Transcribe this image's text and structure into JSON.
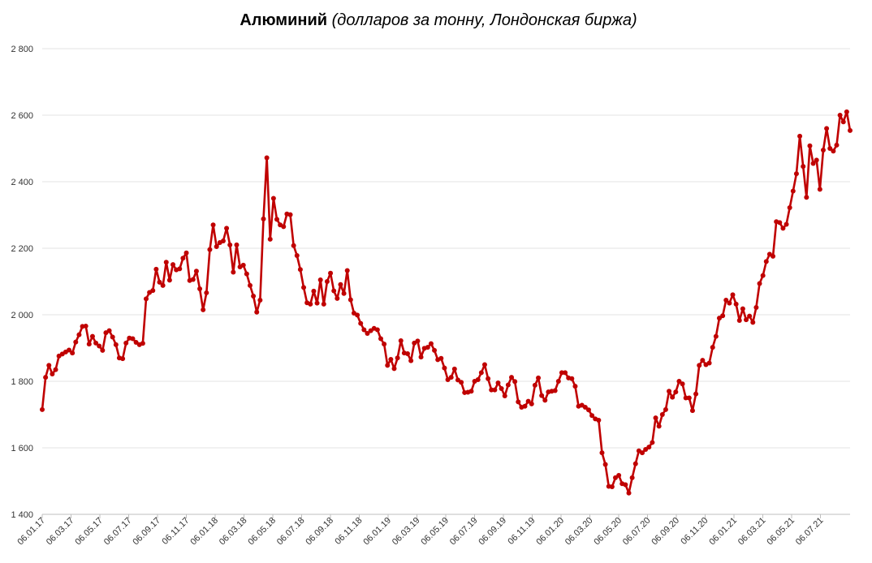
{
  "chart_data": {
    "type": "line",
    "title": "Алюминий",
    "subtitle": "(долларов за тонну, Лондонская биржа)",
    "xlabel": "",
    "ylabel": "",
    "ylim": [
      1400,
      2800
    ],
    "yticks": [
      1400,
      1600,
      1800,
      2000,
      2200,
      2400,
      2600,
      2800
    ],
    "ytick_labels": [
      "1 400",
      "1 600",
      "1 800",
      "2 000",
      "2 200",
      "2 400",
      "2 600",
      "2 800"
    ],
    "xtick_labels": [
      "06.01.17",
      "06.03.17",
      "06.05.17",
      "06.07.17",
      "06.09.17",
      "06.11.17",
      "06.01.18",
      "06.03.18",
      "06.05.18",
      "06.07.18",
      "06.09.18",
      "06.11.18",
      "06.01.19",
      "06.03.19",
      "06.05.19",
      "06.07.19",
      "06.09.19",
      "06.11.19",
      "06.01.20",
      "06.03.20",
      "06.05.20",
      "06.07.20",
      "06.09.20",
      "06.11.20",
      "06.01.21",
      "06.03.21",
      "06.05.21",
      "06.07.21"
    ],
    "grid": true,
    "legend": "none",
    "series": [
      {
        "color": "#C00000",
        "values": [
          1715,
          1812,
          1848,
          1822,
          1835,
          1876,
          1882,
          1888,
          1894,
          1885,
          1918,
          1940,
          1965,
          1966,
          1912,
          1935,
          1915,
          1906,
          1893,
          1946,
          1952,
          1933,
          1910,
          1870,
          1868,
          1915,
          1930,
          1928,
          1917,
          1910,
          1914,
          2048,
          2067,
          2073,
          2137,
          2098,
          2088,
          2158,
          2104,
          2151,
          2135,
          2138,
          2170,
          2186,
          2103,
          2106,
          2131,
          2078,
          2015,
          2066,
          2196,
          2270,
          2205,
          2217,
          2222,
          2260,
          2210,
          2128,
          2210,
          2144,
          2149,
          2123,
          2088,
          2056,
          2008,
          2044,
          2288,
          2472,
          2227,
          2350,
          2287,
          2270,
          2265,
          2303,
          2301,
          2208,
          2178,
          2136,
          2082,
          2036,
          2032,
          2071,
          2035,
          2105,
          2032,
          2100,
          2125,
          2072,
          2049,
          2091,
          2064,
          2133,
          2045,
          2005,
          1999,
          1974,
          1955,
          1944,
          1952,
          1959,
          1955,
          1928,
          1912,
          1848,
          1866,
          1838,
          1870,
          1922,
          1885,
          1883,
          1862,
          1915,
          1921,
          1873,
          1899,
          1902,
          1913,
          1893,
          1865,
          1869,
          1840,
          1805,
          1812,
          1837,
          1804,
          1797,
          1766,
          1767,
          1770,
          1800,
          1805,
          1826,
          1850,
          1808,
          1774,
          1774,
          1795,
          1778,
          1756,
          1789,
          1812,
          1799,
          1738,
          1722,
          1725,
          1740,
          1732,
          1788,
          1810,
          1757,
          1743,
          1768,
          1770,
          1772,
          1800,
          1826,
          1826,
          1810,
          1808,
          1785,
          1725,
          1728,
          1722,
          1714,
          1697,
          1687,
          1683,
          1585,
          1550,
          1484,
          1483,
          1510,
          1517,
          1492,
          1489,
          1464,
          1510,
          1552,
          1591,
          1585,
          1595,
          1602,
          1616,
          1690,
          1665,
          1700,
          1715,
          1770,
          1752,
          1768,
          1800,
          1792,
          1750,
          1750,
          1712,
          1762,
          1848,
          1863,
          1850,
          1855,
          1902,
          1935,
          1990,
          1997,
          2044,
          2035,
          2060,
          2032,
          1983,
          2018,
          1985,
          1996,
          1977,
          2022,
          2094,
          2118,
          2160,
          2182,
          2176,
          2280,
          2277,
          2260,
          2272,
          2322,
          2372,
          2424,
          2537,
          2446,
          2353,
          2508,
          2455,
          2465,
          2377,
          2495,
          2560,
          2500,
          2492,
          2510,
          2600,
          2580,
          2610,
          2554
        ]
      }
    ]
  }
}
